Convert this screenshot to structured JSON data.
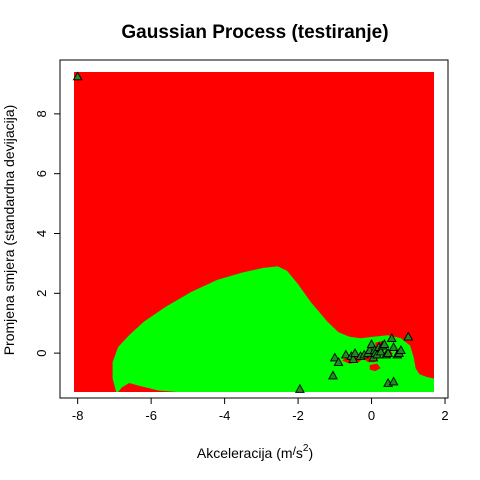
{
  "chart_data": {
    "type": "scatter",
    "title": "Gaussian Process (testiranje)",
    "xlabel": "Akceleracija (m/s²)",
    "xlabel_base": "Akceleracija (m",
    "xlabel_slash": "/",
    "xlabel_unit": "s",
    "xlabel_exp": "2",
    "xlabel_close": ")",
    "ylabel": "Promjena smjera (standardna devijacija)",
    "xlim": [
      -8.1,
      1.7
    ],
    "ylim": [
      -1.3,
      9.4
    ],
    "x_ticks": [
      -8,
      -6,
      -4,
      -2,
      0,
      2
    ],
    "x_tick_labels": [
      "-8",
      "-6",
      "-4",
      "-2",
      "0",
      "2"
    ],
    "y_ticks": [
      0,
      2,
      4,
      6,
      8
    ],
    "y_tick_labels": [
      "0",
      "2",
      "4",
      "6",
      "8"
    ],
    "grid": false,
    "background_region": {
      "class": "red",
      "color": "#ff0000"
    },
    "decision_regions": [
      {
        "class": "green",
        "color": "#00ff00",
        "boundary": [
          [
            -6.95,
            -1.3
          ],
          [
            -7.05,
            -0.85
          ],
          [
            -7.05,
            -0.3
          ],
          [
            -6.9,
            0.2
          ],
          [
            -6.6,
            0.6
          ],
          [
            -6.2,
            1.05
          ],
          [
            -5.6,
            1.55
          ],
          [
            -4.9,
            2.05
          ],
          [
            -4.2,
            2.45
          ],
          [
            -3.5,
            2.7
          ],
          [
            -2.95,
            2.85
          ],
          [
            -2.55,
            2.9
          ],
          [
            -2.3,
            2.75
          ],
          [
            -2.0,
            2.3
          ],
          [
            -1.65,
            1.7
          ],
          [
            -1.2,
            1.05
          ],
          [
            -0.9,
            0.7
          ],
          [
            -0.6,
            0.55
          ],
          [
            -0.3,
            0.5
          ],
          [
            0.05,
            0.55
          ],
          [
            0.45,
            0.6
          ],
          [
            0.8,
            0.5
          ],
          [
            1.05,
            0.25
          ],
          [
            1.15,
            -0.15
          ],
          [
            1.2,
            -0.5
          ],
          [
            1.3,
            -0.7
          ],
          [
            1.5,
            -0.8
          ],
          [
            1.7,
            -0.85
          ],
          [
            1.7,
            -1.3
          ],
          [
            -5.3,
            -1.3
          ],
          [
            -5.8,
            -1.25
          ],
          [
            -6.3,
            -1.1
          ],
          [
            -6.6,
            -1.0
          ],
          [
            -6.8,
            -1.15
          ],
          [
            -6.9,
            -1.3
          ]
        ]
      },
      {
        "class": "red",
        "color": "#ff0000",
        "boundary": [
          [
            -0.65,
            -0.1
          ],
          [
            -0.45,
            -0.05
          ],
          [
            -0.2,
            -0.15
          ],
          [
            -0.35,
            -0.3
          ],
          [
            -0.6,
            -0.35
          ],
          [
            -0.8,
            -0.25
          ]
        ]
      },
      {
        "class": "red",
        "color": "#ff0000",
        "boundary": [
          [
            -0.15,
            -0.1
          ],
          [
            0.05,
            -0.05
          ],
          [
            0.2,
            -0.15
          ],
          [
            0.1,
            -0.3
          ],
          [
            -0.1,
            -0.3
          ],
          [
            -0.2,
            -0.2
          ]
        ]
      },
      {
        "class": "red",
        "color": "#ff0000",
        "boundary": [
          [
            0.1,
            0.35
          ],
          [
            0.25,
            0.4
          ],
          [
            0.4,
            0.3
          ],
          [
            0.3,
            0.15
          ],
          [
            0.12,
            0.2
          ]
        ]
      },
      {
        "class": "red",
        "color": "#ff0000",
        "boundary": [
          [
            0.35,
            0.05
          ],
          [
            0.5,
            0.1
          ],
          [
            0.58,
            -0.02
          ],
          [
            0.48,
            -0.12
          ],
          [
            0.35,
            -0.08
          ]
        ]
      },
      {
        "class": "red",
        "color": "#ff0000",
        "boundary": [
          [
            -0.05,
            -0.4
          ],
          [
            0.15,
            -0.35
          ],
          [
            0.25,
            -0.5
          ],
          [
            0.1,
            -0.6
          ],
          [
            -0.05,
            -0.55
          ]
        ]
      }
    ],
    "points": {
      "marker": "triangle",
      "fill": "#228b22",
      "stroke": "#000000",
      "x": [
        -8.0,
        -1.95,
        -1.05,
        -1.0,
        -0.9,
        -0.7,
        -0.55,
        -0.5,
        -0.45,
        -0.3,
        -0.2,
        -0.1,
        -0.05,
        0.0,
        0.05,
        0.08,
        0.1,
        0.15,
        0.2,
        0.25,
        0.3,
        0.35,
        0.4,
        0.45,
        0.55,
        0.6,
        0.7,
        0.75,
        0.8,
        1.0,
        0.45,
        0.6
      ],
      "y": [
        9.25,
        -1.2,
        -0.75,
        -0.15,
        -0.3,
        -0.05,
        -0.1,
        -0.2,
        0.0,
        -0.1,
        -0.05,
        0.0,
        0.1,
        0.3,
        -0.15,
        0.1,
        0.0,
        -0.05,
        0.2,
        0.05,
        0.25,
        0.3,
        -0.05,
        0.0,
        0.5,
        0.2,
        -0.05,
        0.0,
        0.1,
        0.55,
        -1.0,
        -0.95
      ]
    }
  }
}
